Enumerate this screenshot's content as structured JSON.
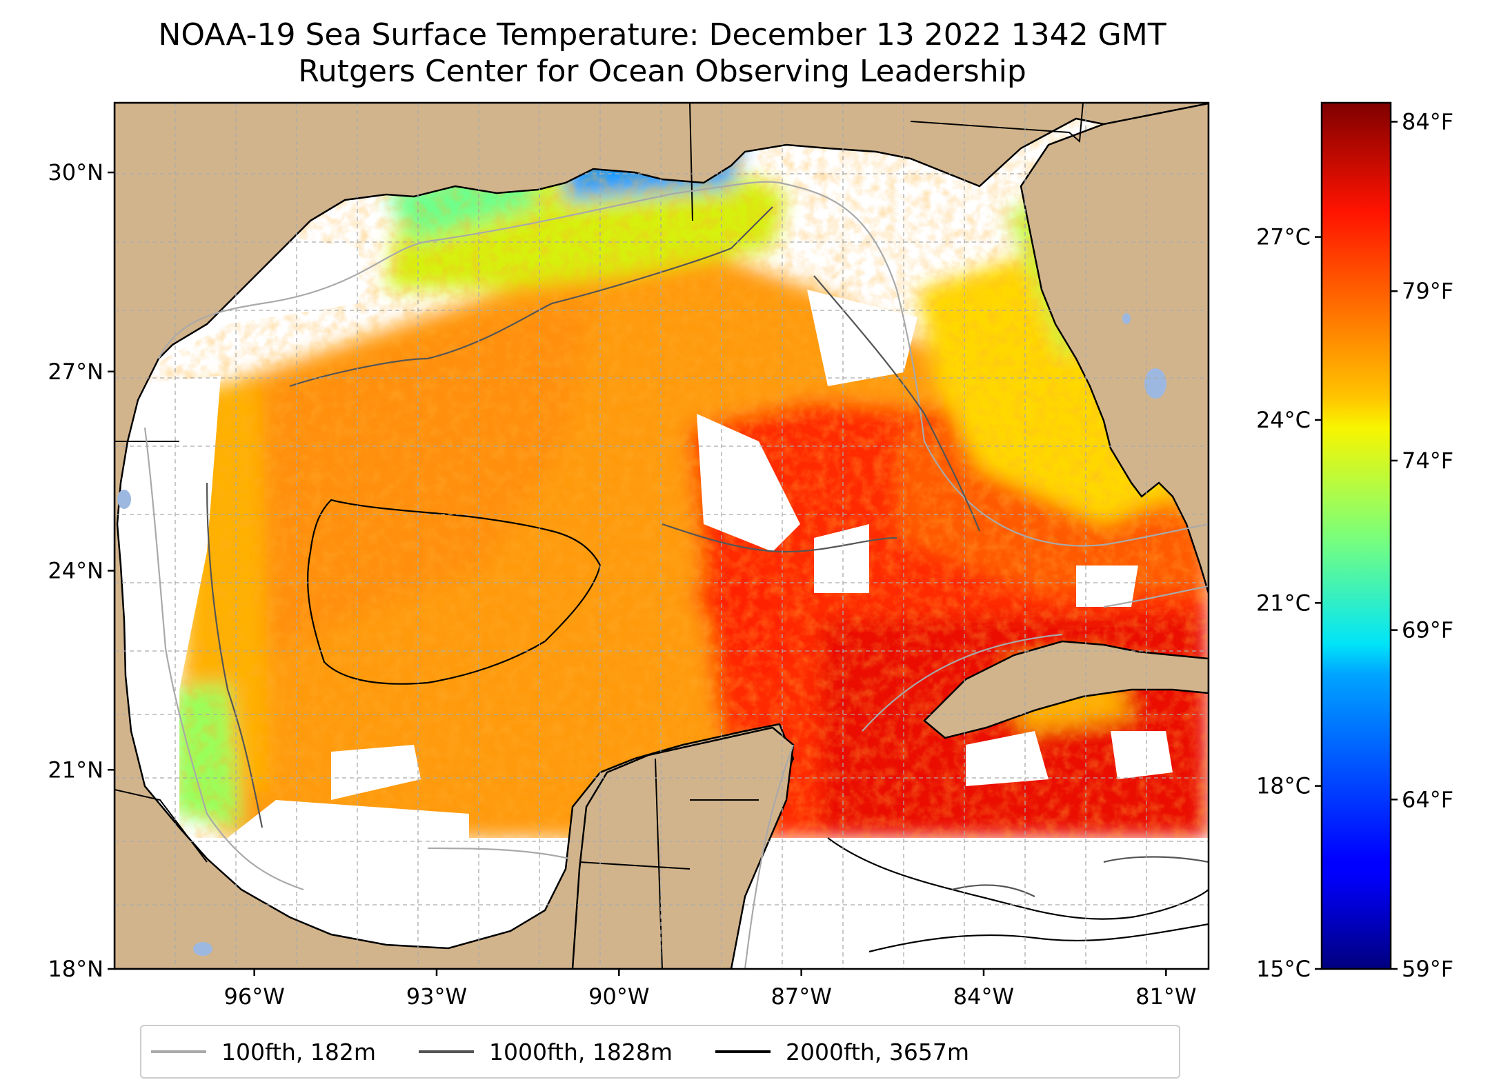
{
  "title": {
    "line1": "NOAA-19 Sea Surface Temperature: December 13 2022 1342 GMT",
    "line2": "Rutgers Center for Ocean Observing Leadership"
  },
  "map": {
    "extent": {
      "lon_min": -98.3,
      "lon_max": -80.3,
      "lat_min": 18.0,
      "lat_max": 31.05
    },
    "lat_ticks": [
      {
        "value": 30,
        "label": "30°N"
      },
      {
        "value": 27,
        "label": "27°N"
      },
      {
        "value": 24,
        "label": "24°N"
      },
      {
        "value": 21,
        "label": "21°N"
      },
      {
        "value": 18,
        "label": "18°N"
      }
    ],
    "lon_ticks": [
      {
        "value": -96,
        "label": "96°W"
      },
      {
        "value": -93,
        "label": "93°W"
      },
      {
        "value": -90,
        "label": "90°W"
      },
      {
        "value": -87,
        "label": "87°W"
      },
      {
        "value": -84,
        "label": "84°W"
      },
      {
        "value": -81,
        "label": "81°W"
      }
    ],
    "colors": {
      "land": "#d2b48c",
      "water_no_data": "#ffffff",
      "lakes": "#9db8e0",
      "gridlines": "#aaaaaa"
    }
  },
  "colorbar": {
    "colormap": "jet",
    "range_c": [
      15,
      29.2
    ],
    "celsius_ticks": [
      {
        "value": 27,
        "label": "27°C"
      },
      {
        "value": 24,
        "label": "24°C"
      },
      {
        "value": 21,
        "label": "21°C"
      },
      {
        "value": 18,
        "label": "18°C"
      },
      {
        "value": 15,
        "label": "15°C"
      }
    ],
    "fahrenheit_ticks": [
      {
        "value": 84,
        "label": "84°F"
      },
      {
        "value": 79,
        "label": "79°F"
      },
      {
        "value": 74,
        "label": "74°F"
      },
      {
        "value": 69,
        "label": "69°F"
      },
      {
        "value": 64,
        "label": "64°F"
      },
      {
        "value": 59,
        "label": "59°F"
      }
    ]
  },
  "legend": [
    {
      "label": "100fth, 182m",
      "color": "#a9a9a9"
    },
    {
      "label": "1000fth, 1828m",
      "color": "#555555"
    },
    {
      "label": "2000fth, 3657m",
      "color": "#000000"
    }
  ]
}
